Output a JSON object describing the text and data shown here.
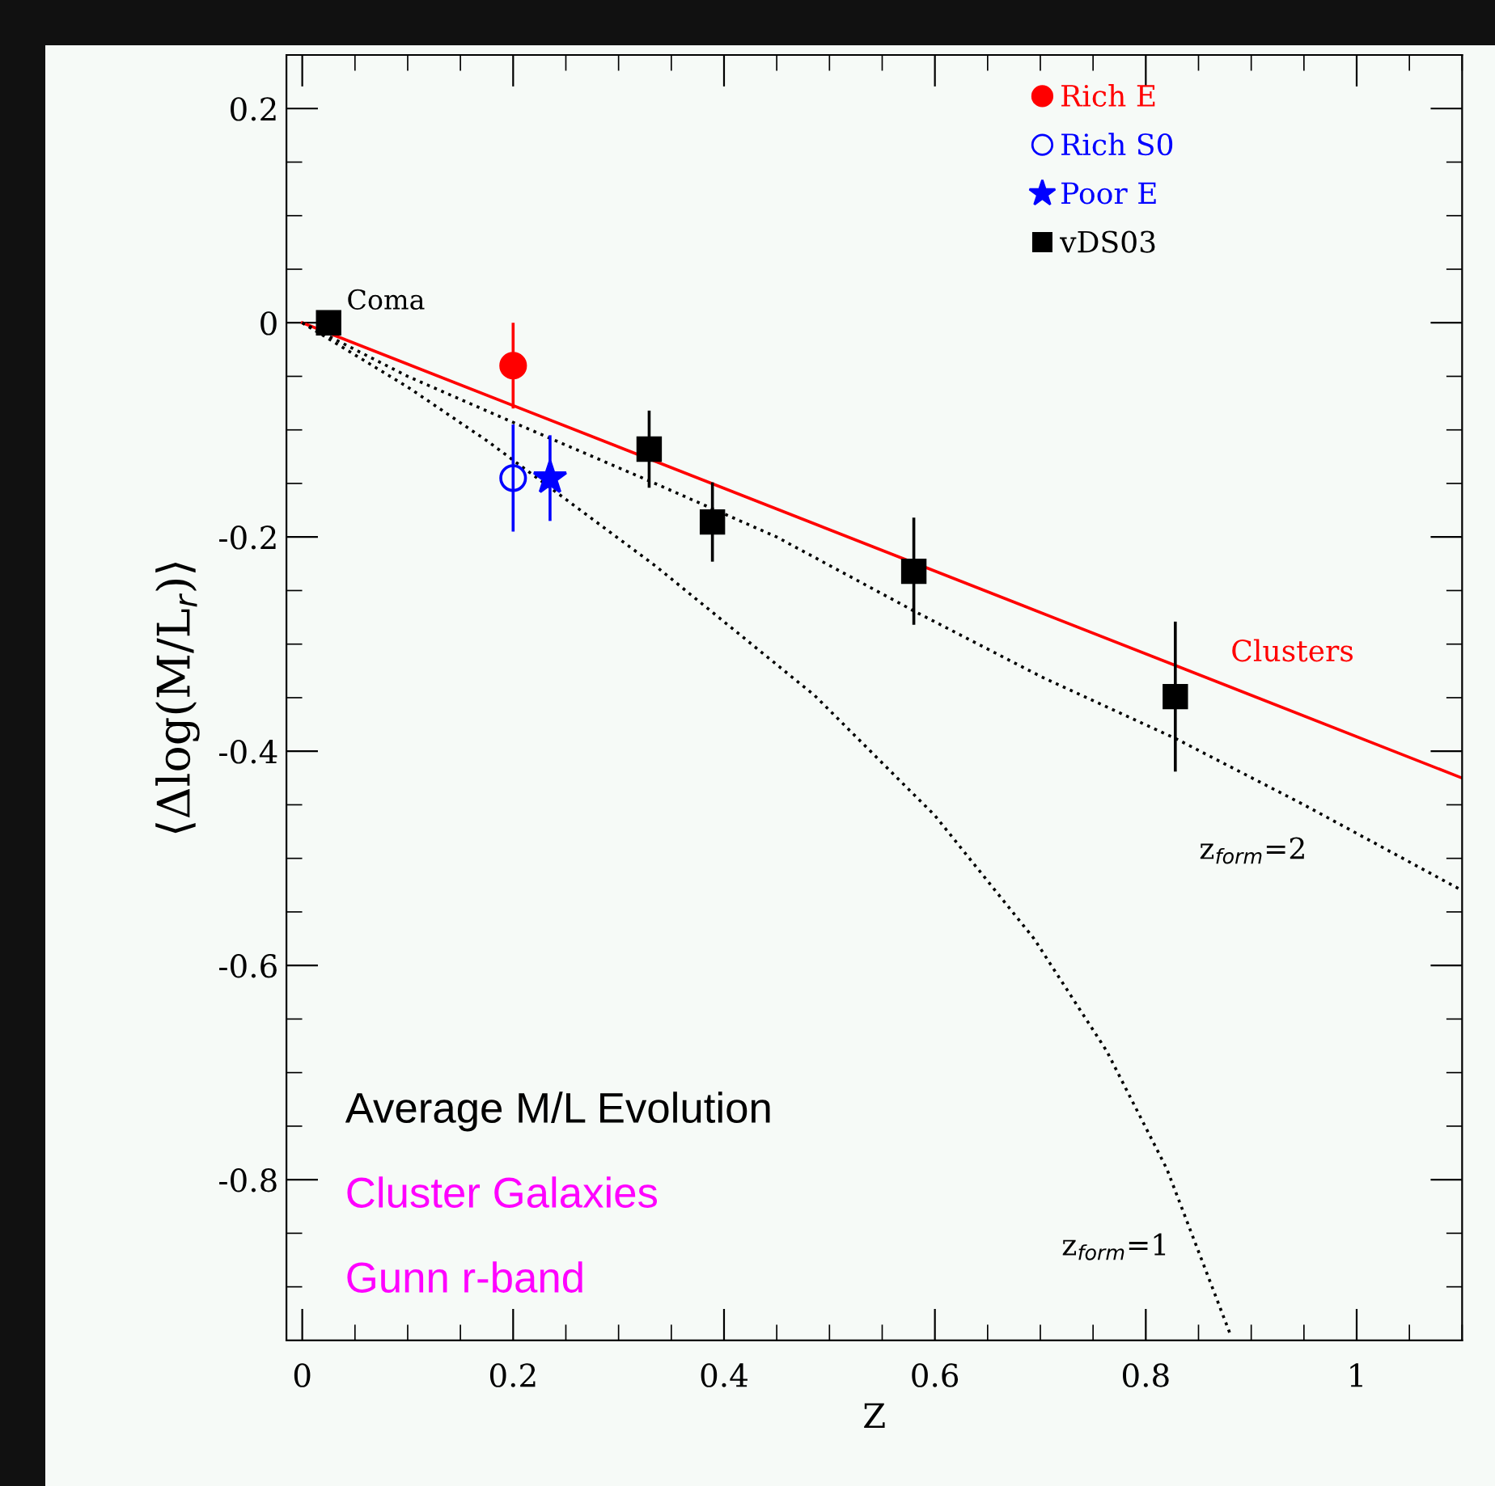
{
  "chart_data": {
    "type": "scatter",
    "xlabel": "Z",
    "ylabel": "⟨Δlog(M/L$_{r}$)⟩",
    "xlim": [
      -0.015,
      1.1
    ],
    "ylim": [
      -0.95,
      0.25
    ],
    "xticks": [
      0,
      0.2,
      0.4,
      0.6,
      0.8,
      1
    ],
    "yticks": [
      -0.8,
      -0.6,
      -0.4,
      -0.2,
      0,
      0.2
    ],
    "grid": false,
    "legend": "top right",
    "series": [
      {
        "name": "Clusters",
        "type": "line",
        "color": "#ff0000",
        "line_style": "solid",
        "marker": "none",
        "x": [
          0,
          1.1
        ],
        "values": [
          0,
          -0.425
        ]
      },
      {
        "name": "z$_{form}$=2",
        "type": "line",
        "color": "#000000",
        "line_style": "dotted",
        "marker": "none",
        "x": [
          0,
          0.1,
          0.2,
          0.33,
          0.45,
          0.58,
          0.7,
          0.83,
          0.95,
          1.1
        ],
        "values": [
          0,
          -0.05,
          -0.093,
          -0.148,
          -0.2,
          -0.269,
          -0.33,
          -0.389,
          -0.45,
          -0.53
        ]
      },
      {
        "name": "z$_{form}$=1",
        "type": "line",
        "color": "#000000",
        "line_style": "dotted",
        "marker": "none",
        "x": [
          0,
          0.1,
          0.175,
          0.335,
          0.486,
          0.6,
          0.694,
          0.763,
          0.82,
          0.88
        ],
        "values": [
          0,
          -0.06,
          -0.11,
          -0.227,
          -0.348,
          -0.46,
          -0.575,
          -0.68,
          -0.79,
          -0.944
        ]
      },
      {
        "name": "Rich E",
        "color": "#ff0000",
        "marker": "circle",
        "x": [
          0.2
        ],
        "values": [
          -0.04
        ],
        "errors": [
          0.04
        ]
      },
      {
        "name": "Rich S0",
        "color": "#0000ff",
        "marker": "circle",
        "x": [
          0.2
        ],
        "values": [
          -0.145
        ],
        "errors": [
          0.05
        ]
      },
      {
        "name": "Poor E",
        "color": "#0000ff",
        "marker": "star",
        "x": [
          0.235
        ],
        "values": [
          -0.145
        ],
        "errors": [
          0.04
        ]
      },
      {
        "name": "vDS03",
        "color": "#000000",
        "marker": "square",
        "x": [
          0.025,
          0.329,
          0.389,
          0.58,
          0.828
        ],
        "values": [
          0,
          -0.118,
          -0.186,
          -0.232,
          -0.349
        ],
        "errors": [
          0.01,
          0.036,
          0.037,
          0.05,
          0.07
        ]
      }
    ],
    "annotations": [
      {
        "text": "Coma",
        "x": 0.025,
        "y": 0
      },
      "Average M/L Evolution",
      "Cluster Galaxies",
      "Gunn r-band"
    ]
  }
}
